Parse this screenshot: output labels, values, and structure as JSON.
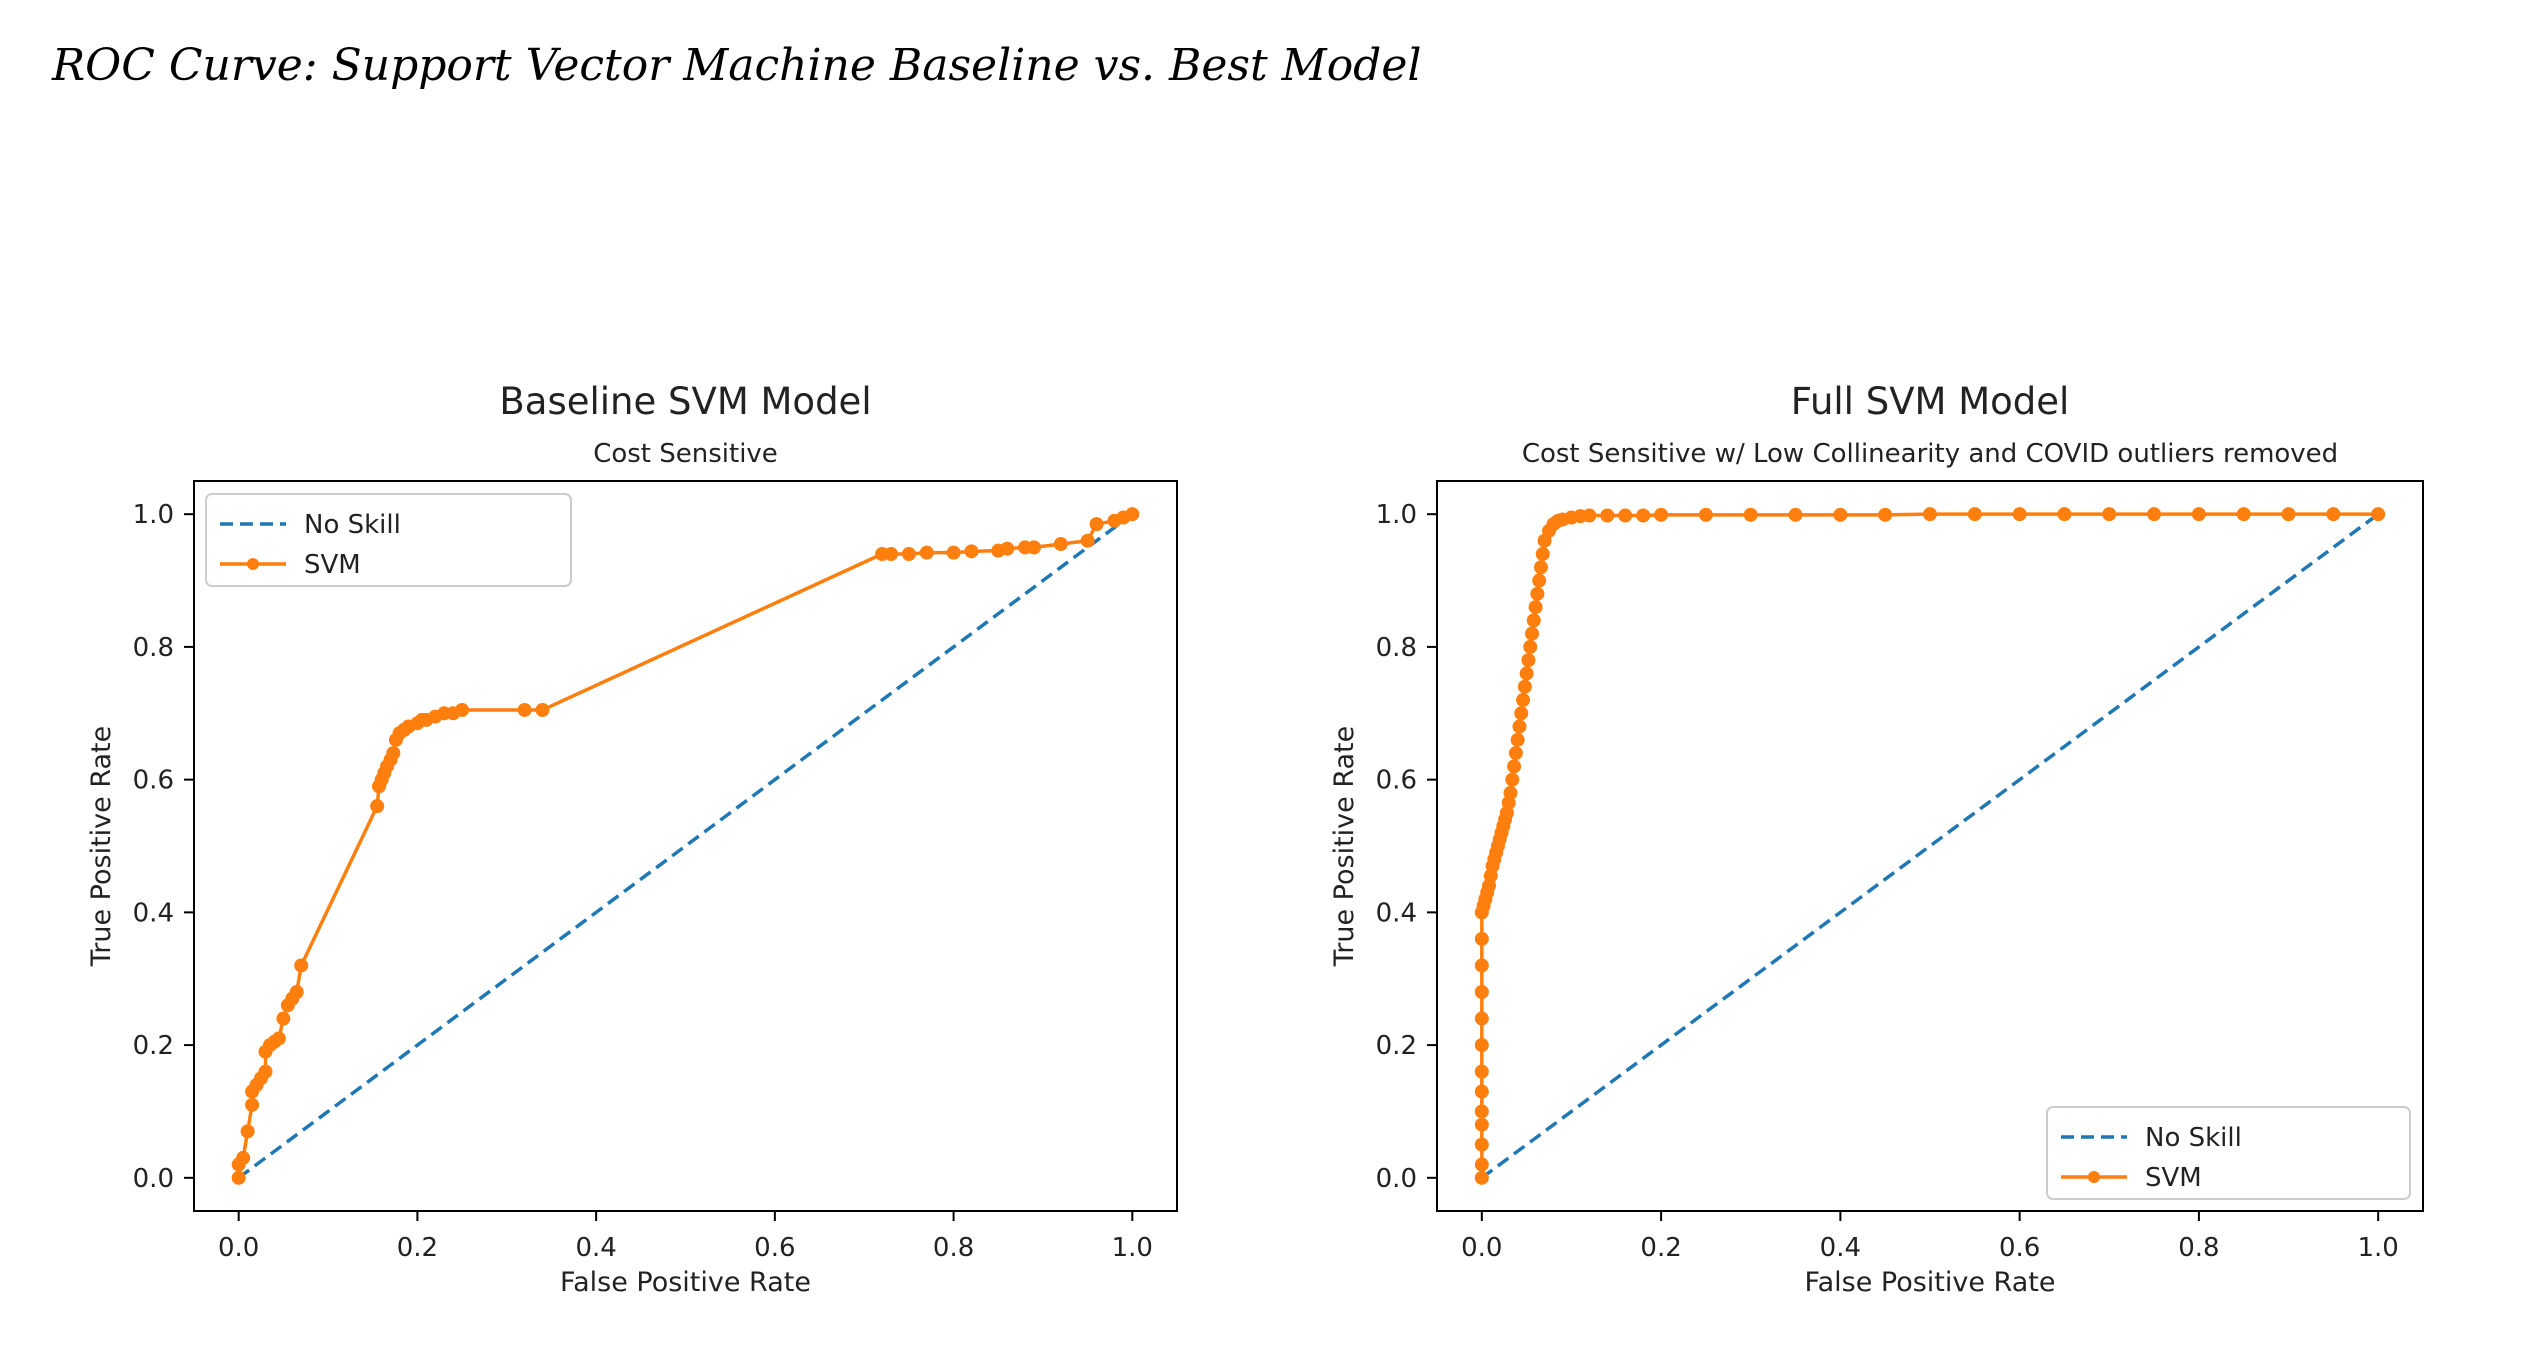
{
  "heading": "ROC Curve: Support Vector Machine Baseline vs. Best Model",
  "colors": {
    "no_skill": "#1f77b4",
    "svm": "#ff7f0e",
    "axis": "#000000",
    "text": "#222222"
  },
  "chart_data": [
    {
      "type": "line",
      "title": "Baseline SVM Model",
      "subtitle": "Cost Sensitive",
      "xlabel": "False Positive Rate",
      "ylabel": "True Positive Rate",
      "xlim": [
        -0.05,
        1.05
      ],
      "ylim": [
        -0.05,
        1.05
      ],
      "xticks": [
        "0.0",
        "0.2",
        "0.4",
        "0.6",
        "0.8",
        "1.0"
      ],
      "yticks": [
        "0.0",
        "0.2",
        "0.4",
        "0.6",
        "0.8",
        "1.0"
      ],
      "grid": false,
      "legend_position": "upper left",
      "series": [
        {
          "name": "No Skill",
          "style": "dashed",
          "x": [
            0,
            1
          ],
          "y": [
            0,
            1
          ]
        },
        {
          "name": "SVM",
          "style": "line-marker",
          "x": [
            0.0,
            0.0,
            0.005,
            0.01,
            0.015,
            0.015,
            0.02,
            0.025,
            0.03,
            0.03,
            0.035,
            0.04,
            0.045,
            0.05,
            0.055,
            0.06,
            0.065,
            0.07,
            0.155,
            0.157,
            0.16,
            0.163,
            0.166,
            0.17,
            0.173,
            0.176,
            0.18,
            0.185,
            0.19,
            0.2,
            0.205,
            0.21,
            0.22,
            0.23,
            0.24,
            0.25,
            0.32,
            0.34,
            0.72,
            0.73,
            0.75,
            0.77,
            0.8,
            0.82,
            0.85,
            0.86,
            0.88,
            0.89,
            0.92,
            0.95,
            0.96,
            0.98,
            0.99,
            1.0
          ],
          "y": [
            0.0,
            0.02,
            0.03,
            0.07,
            0.11,
            0.13,
            0.14,
            0.15,
            0.16,
            0.19,
            0.2,
            0.205,
            0.21,
            0.24,
            0.26,
            0.27,
            0.28,
            0.32,
            0.56,
            0.59,
            0.6,
            0.61,
            0.62,
            0.63,
            0.64,
            0.66,
            0.67,
            0.675,
            0.68,
            0.685,
            0.69,
            0.69,
            0.695,
            0.7,
            0.7,
            0.705,
            0.705,
            0.705,
            0.94,
            0.94,
            0.94,
            0.942,
            0.942,
            0.944,
            0.945,
            0.948,
            0.95,
            0.95,
            0.955,
            0.96,
            0.985,
            0.99,
            0.995,
            1.0
          ]
        }
      ]
    },
    {
      "type": "line",
      "title": "Full SVM Model",
      "subtitle": "Cost Sensitive w/ Low Collinearity and COVID outliers removed",
      "xlabel": "False Positive Rate",
      "ylabel": "True Positive Rate",
      "xlim": [
        -0.05,
        1.05
      ],
      "ylim": [
        -0.05,
        1.05
      ],
      "xticks": [
        "0.0",
        "0.2",
        "0.4",
        "0.6",
        "0.8",
        "1.0"
      ],
      "yticks": [
        "0.0",
        "0.2",
        "0.4",
        "0.6",
        "0.8",
        "1.0"
      ],
      "grid": false,
      "legend_position": "lower right",
      "series": [
        {
          "name": "No Skill",
          "style": "dashed",
          "x": [
            0,
            1
          ],
          "y": [
            0,
            1
          ]
        },
        {
          "name": "SVM",
          "style": "line-marker",
          "x": [
            0.0,
            0.0,
            0.0,
            0.0,
            0.0,
            0.0,
            0.0,
            0.0,
            0.0,
            0.0,
            0.0,
            0.0,
            0.0,
            0.002,
            0.004,
            0.006,
            0.008,
            0.01,
            0.012,
            0.014,
            0.016,
            0.018,
            0.02,
            0.022,
            0.024,
            0.026,
            0.028,
            0.03,
            0.032,
            0.034,
            0.036,
            0.038,
            0.04,
            0.042,
            0.044,
            0.046,
            0.048,
            0.05,
            0.052,
            0.054,
            0.056,
            0.058,
            0.06,
            0.062,
            0.064,
            0.066,
            0.068,
            0.07,
            0.075,
            0.08,
            0.085,
            0.09,
            0.1,
            0.11,
            0.12,
            0.14,
            0.16,
            0.18,
            0.2,
            0.25,
            0.3,
            0.35,
            0.4,
            0.45,
            0.5,
            0.55,
            0.6,
            0.65,
            0.7,
            0.75,
            0.8,
            0.85,
            0.9,
            0.95,
            1.0
          ],
          "y": [
            0.0,
            0.02,
            0.05,
            0.08,
            0.1,
            0.13,
            0.16,
            0.2,
            0.24,
            0.28,
            0.32,
            0.36,
            0.4,
            0.41,
            0.42,
            0.43,
            0.44,
            0.455,
            0.47,
            0.48,
            0.49,
            0.5,
            0.51,
            0.52,
            0.53,
            0.54,
            0.55,
            0.565,
            0.58,
            0.6,
            0.62,
            0.64,
            0.66,
            0.68,
            0.7,
            0.72,
            0.74,
            0.76,
            0.78,
            0.8,
            0.82,
            0.84,
            0.86,
            0.88,
            0.9,
            0.92,
            0.94,
            0.96,
            0.975,
            0.985,
            0.99,
            0.992,
            0.995,
            0.997,
            0.998,
            0.998,
            0.998,
            0.998,
            0.999,
            0.999,
            0.999,
            0.999,
            0.999,
            0.999,
            1.0,
            1.0,
            1.0,
            1.0,
            1.0,
            1.0,
            1.0,
            1.0,
            1.0,
            1.0,
            1.0
          ]
        }
      ]
    }
  ]
}
